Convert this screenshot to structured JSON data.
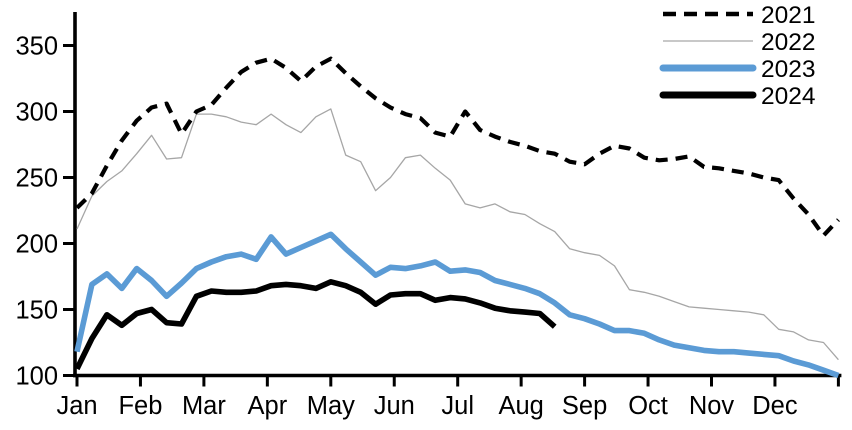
{
  "chart_data": {
    "type": "line",
    "title": "",
    "grid": false,
    "legend_position": "top-right",
    "x_axis": {
      "unit": "week",
      "points_per_series_full_year": 52,
      "tick_labels": [
        "Jan",
        "Feb",
        "Mar",
        "Apr",
        "May",
        "Jun",
        "Jul",
        "Aug",
        "Sep",
        "Oct",
        "Nov",
        "Dec"
      ]
    },
    "y_axis": {
      "range_min": 100,
      "range_max": 350,
      "tick_values": [
        350,
        300,
        250,
        200,
        150,
        100
      ],
      "tick_labels": [
        "350",
        "300",
        "250",
        "200",
        "150",
        "100"
      ]
    },
    "colors": {
      "black": "#000000",
      "gray_2022": "#a6a6a6",
      "blue_2023": "#5b9bd5"
    },
    "series": [
      {
        "label": "2021",
        "color": "#000000",
        "style": "dashed",
        "width": 4.2,
        "values": [
          227,
          238,
          259,
          278,
          293,
          303,
          306,
          283,
          300,
          305,
          318,
          330,
          337,
          340,
          333,
          323,
          334,
          340,
          329,
          319,
          310,
          303,
          298,
          295,
          284,
          281,
          300,
          286,
          281,
          277,
          274,
          270,
          268,
          262,
          260,
          268,
          274,
          272,
          265,
          263,
          264,
          266,
          258,
          257,
          255,
          253,
          250,
          248,
          234,
          222,
          206,
          218
        ]
      },
      {
        "label": "2022",
        "color": "#a6a6a6",
        "style": "solid",
        "width": 1.3,
        "values": [
          211,
          236,
          247,
          255,
          268,
          282,
          264,
          265,
          298,
          298,
          296,
          292,
          290,
          298,
          290,
          284,
          296,
          302,
          267,
          262,
          240,
          250,
          265,
          267,
          257,
          248,
          230,
          227,
          230,
          224,
          222,
          215,
          209,
          196,
          193,
          191,
          183,
          165,
          163,
          160,
          156,
          152,
          151,
          150,
          149,
          148,
          146,
          135,
          133,
          127,
          125,
          112
        ]
      },
      {
        "label": "2023",
        "color": "#5b9bd5",
        "style": "solid",
        "width": 5.6,
        "values": [
          118,
          169,
          177,
          166,
          181,
          172,
          160,
          170,
          181,
          186,
          190,
          192,
          188,
          205,
          192,
          197,
          202,
          207,
          196,
          186,
          176,
          182,
          181,
          183,
          186,
          179,
          180,
          178,
          172,
          169,
          166,
          162,
          155,
          146,
          143,
          139,
          134,
          134,
          132,
          127,
          123,
          121,
          119,
          118,
          118,
          117,
          116,
          115,
          111,
          108,
          104,
          100
        ]
      },
      {
        "label": "2024",
        "color": "#000000",
        "style": "solid",
        "width": 5.6,
        "values": [
          105,
          128,
          146,
          138,
          147,
          150,
          140,
          139,
          160,
          164,
          163,
          163,
          164,
          168,
          169,
          168,
          166,
          171,
          168,
          163,
          154,
          161,
          162,
          162,
          157,
          159,
          158,
          155,
          151,
          149,
          148,
          147,
          137
        ]
      }
    ]
  }
}
